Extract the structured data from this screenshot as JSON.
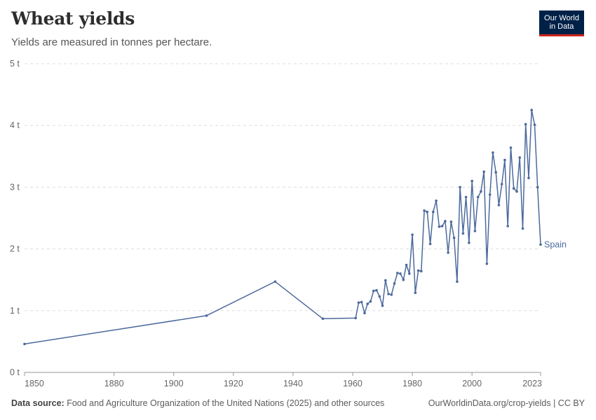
{
  "header": {
    "title": "Wheat yields",
    "subtitle": "Yields are measured in tonnes per hectare."
  },
  "logo": {
    "line1": "Our World",
    "line2": "in Data"
  },
  "footer": {
    "source_label": "Data source:",
    "source_text": "Food and Agriculture Organization of the United Nations (2025) and other sources",
    "url": "OurWorldinData.org/crop-yields | CC BY"
  },
  "colors": {
    "series": "#4c6a9c",
    "grid": "#dddddd",
    "axis": "#999999",
    "logo_bg": "#002147",
    "logo_accent": "#ce261e"
  },
  "chart_data": {
    "type": "line",
    "title": "Wheat yields",
    "xlabel": "",
    "ylabel": "",
    "xlim": [
      1850,
      2023
    ],
    "ylim": [
      0,
      5
    ],
    "x_ticks": [
      1850,
      1880,
      1900,
      1920,
      1940,
      1960,
      1980,
      2000,
      2023
    ],
    "y_ticks": [
      0,
      1,
      2,
      3,
      4,
      5
    ],
    "y_tick_labels": [
      "0 t",
      "1 t",
      "2 t",
      "3 t",
      "4 t",
      "5 t"
    ],
    "grid": true,
    "series": [
      {
        "name": "Spain",
        "x": [
          1850,
          1911,
          1934,
          1950,
          1961,
          1962,
          1963,
          1964,
          1965,
          1966,
          1967,
          1968,
          1969,
          1970,
          1971,
          1972,
          1973,
          1974,
          1975,
          1976,
          1977,
          1978,
          1979,
          1980,
          1981,
          1982,
          1983,
          1984,
          1985,
          1986,
          1987,
          1988,
          1989,
          1990,
          1991,
          1992,
          1993,
          1994,
          1995,
          1996,
          1997,
          1998,
          1999,
          2000,
          2001,
          2002,
          2003,
          2004,
          2005,
          2006,
          2007,
          2008,
          2009,
          2010,
          2011,
          2012,
          2013,
          2014,
          2015,
          2016,
          2017,
          2018,
          2019,
          2020,
          2021,
          2022,
          2023
        ],
        "y": [
          0.46,
          0.92,
          1.47,
          0.87,
          0.88,
          1.13,
          1.14,
          0.96,
          1.11,
          1.15,
          1.32,
          1.33,
          1.23,
          1.08,
          1.49,
          1.27,
          1.26,
          1.44,
          1.61,
          1.6,
          1.5,
          1.74,
          1.6,
          2.23,
          1.29,
          1.65,
          1.64,
          2.62,
          2.6,
          2.08,
          2.6,
          2.78,
          2.36,
          2.37,
          2.45,
          1.94,
          2.44,
          2.18,
          1.47,
          3.0,
          2.25,
          2.84,
          2.1,
          3.1,
          2.29,
          2.84,
          2.93,
          3.25,
          1.76,
          2.88,
          3.56,
          3.24,
          2.71,
          3.05,
          3.44,
          2.37,
          3.64,
          2.98,
          2.93,
          3.48,
          2.33,
          4.02,
          3.15,
          4.25,
          4.01,
          3.0,
          2.07
        ]
      }
    ]
  }
}
